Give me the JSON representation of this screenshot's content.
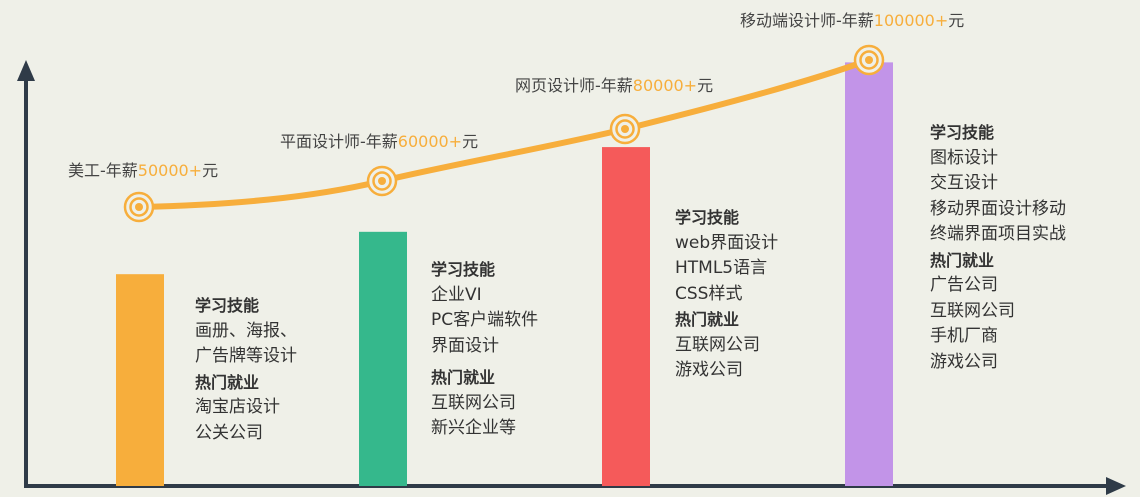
{
  "colors": {
    "background": "#eff0e8",
    "axis": "#2f3b48",
    "curve": "#f7ae3c",
    "highlight": "#f7ae3c"
  },
  "chart_data": {
    "type": "bar",
    "categories": [
      "美工",
      "平面设计师",
      "网页设计师",
      "移动端设计师"
    ],
    "values": [
      50000,
      60000,
      80000,
      100000
    ],
    "bar_colors": [
      "#f7ae3c",
      "#35b88c",
      "#f55a5a",
      "#c294e8"
    ],
    "ylim": [
      0,
      110000
    ],
    "grid": false,
    "overlay_line": {
      "type": "line",
      "color": "#f7ae3c",
      "marker": "concentric-circle"
    }
  },
  "salaries": [
    {
      "prefix": "美工-年薪",
      "amount": "50000+",
      "suffix": "元"
    },
    {
      "prefix": "平面设计师-年薪",
      "amount": "60000+",
      "suffix": "元"
    },
    {
      "prefix": "网页设计师-年薪",
      "amount": "80000+",
      "suffix": "元"
    },
    {
      "prefix": "移动端设计师-年薪",
      "amount": "100000+",
      "suffix": "元"
    }
  ],
  "columns": [
    {
      "skills_heading": "学习技能",
      "skills": [
        "画册、海报、",
        "广告牌等设计"
      ],
      "jobs_heading": "热门就业",
      "jobs": [
        "淘宝店设计",
        "公关公司"
      ]
    },
    {
      "skills_heading": "学习技能",
      "skills": [
        "企业VI",
        "PC客户端软件",
        "界面设计"
      ],
      "jobs_heading": "热门就业",
      "jobs": [
        "互联网公司",
        "新兴企业等"
      ]
    },
    {
      "skills_heading": "学习技能",
      "skills": [
        "web界面设计",
        "HTML5语言",
        "CSS样式"
      ],
      "jobs_heading": "热门就业",
      "jobs": [
        "互联网公司",
        "游戏公司"
      ]
    },
    {
      "skills_heading": "学习技能",
      "skills": [
        "图标设计",
        "交互设计",
        "移动界面设计移动",
        "终端界面项目实战"
      ],
      "jobs_heading": "热门就业",
      "jobs": [
        "广告公司",
        "互联网公司",
        "手机厂商",
        "游戏公司"
      ]
    }
  ]
}
